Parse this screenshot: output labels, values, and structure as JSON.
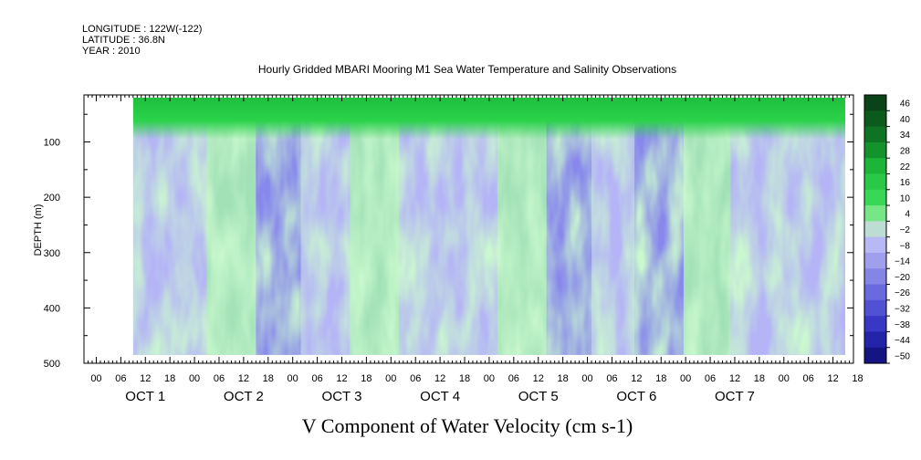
{
  "header": {
    "longitude": "LONGITUDE : 122W(-122)",
    "latitude": "LATITUDE : 36.8N",
    "year": "YEAR : 2010",
    "title": "Hourly Gridded MBARI Mooring M1 Sea Water Temperature and Salinity Observations"
  },
  "chart_data": {
    "type": "heatmap",
    "title": "Hourly Gridded MBARI Mooring M1 Sea Water Temperature and Salinity Observations",
    "xlabel": "V Component of Water Velocity (cm s-1)",
    "ylabel": "DEPTH (m)",
    "y_ticks": [
      100,
      200,
      300,
      400,
      500
    ],
    "y_range": [
      15,
      500
    ],
    "y_inverted": true,
    "x_hour_ticks": [
      "00",
      "06",
      "12",
      "18",
      "00",
      "06",
      "12",
      "18",
      "00",
      "06",
      "12",
      "18",
      "00",
      "06",
      "12",
      "18",
      "00",
      "06",
      "12",
      "18",
      "00",
      "06",
      "12",
      "18",
      "00",
      "06",
      "12",
      "18",
      "00",
      "06",
      "12",
      "18"
    ],
    "x_day_labels": [
      "OCT 1",
      "OCT 2",
      "OCT 3",
      "OCT 4",
      "OCT 5",
      "OCT 6",
      "OCT 7"
    ],
    "x_range_hours": [
      -3,
      185
    ],
    "data_hours": [
      9,
      183
    ],
    "data_depth": [
      20,
      485
    ],
    "colorbar_levels": [
      46,
      40,
      34,
      28,
      22,
      16,
      10,
      4,
      -2,
      -8,
      -14,
      -20,
      -26,
      -32,
      -38,
      -44,
      -50
    ],
    "colorbar_range": [
      -50,
      50
    ],
    "colors": {
      "strong_positive": "#0a5a1e",
      "positive": "#1ec83a",
      "weak_positive": "#9cf0a0",
      "weak_negative": "#b4b4f5",
      "negative": "#7a7ae8",
      "strong_negative": "#0c0c70"
    },
    "surface_band_value": 28,
    "column_profile_cm_s": [
      {
        "hour": 10,
        "value": -6
      },
      {
        "hour": 20,
        "value": -10
      },
      {
        "hour": 34,
        "value": 2
      },
      {
        "hour": 44,
        "value": -14
      },
      {
        "hour": 56,
        "value": -8
      },
      {
        "hour": 68,
        "value": 4
      },
      {
        "hour": 80,
        "value": -10
      },
      {
        "hour": 92,
        "value": -8
      },
      {
        "hour": 104,
        "value": 2
      },
      {
        "hour": 116,
        "value": -12
      },
      {
        "hour": 126,
        "value": -8
      },
      {
        "hour": 137,
        "value": -22
      },
      {
        "hour": 150,
        "value": 4
      },
      {
        "hour": 160,
        "value": -6
      },
      {
        "hour": 176,
        "value": -10
      }
    ]
  }
}
